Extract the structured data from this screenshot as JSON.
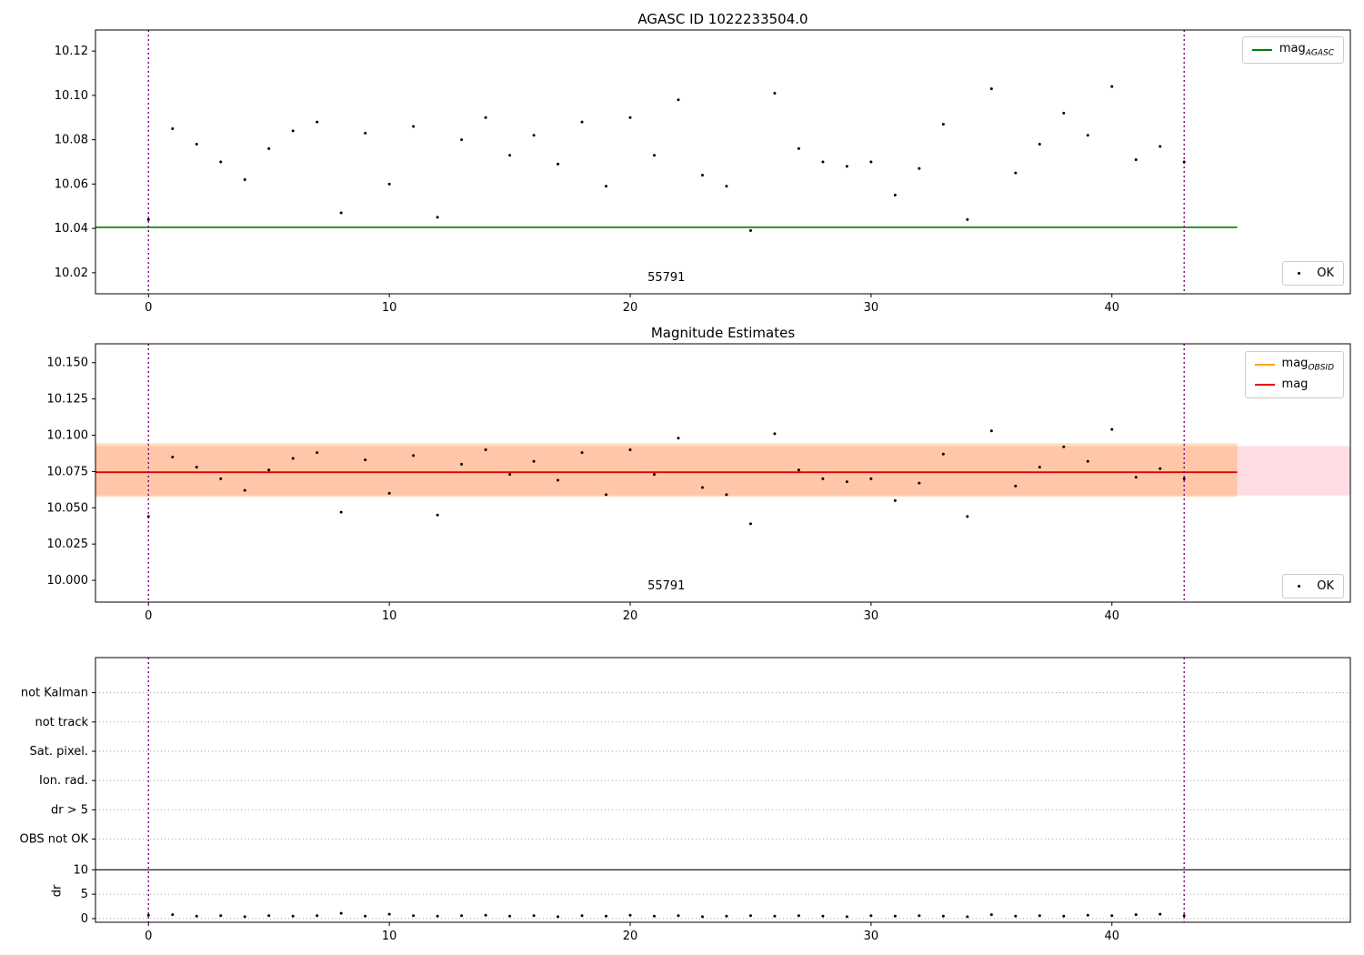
{
  "figure": {
    "obsid": "55791",
    "vline_color": "#800080",
    "marker_color": "#000000"
  },
  "points": {
    "x": [
      0,
      1,
      2,
      3,
      4,
      5,
      6,
      7,
      8,
      9,
      10,
      11,
      12,
      13,
      14,
      15,
      16,
      17,
      18,
      19,
      20,
      21,
      22,
      23,
      24,
      25,
      26,
      27,
      28,
      29,
      30,
      31,
      32,
      33,
      34,
      35,
      36,
      37,
      38,
      39,
      40,
      41,
      42,
      43
    ],
    "mag": [
      10.044,
      10.085,
      10.078,
      10.07,
      10.062,
      10.076,
      10.084,
      10.088,
      10.047,
      10.083,
      10.06,
      10.086,
      10.045,
      10.08,
      10.09,
      10.073,
      10.082,
      10.069,
      10.088,
      10.059,
      10.09,
      10.073,
      10.098,
      10.064,
      10.059,
      10.039,
      10.101,
      10.076,
      10.07,
      10.068,
      10.07,
      10.055,
      10.067,
      10.087,
      10.044,
      10.103,
      10.065,
      10.078,
      10.092,
      10.082,
      10.104,
      10.071,
      10.077,
      10.07
    ],
    "dr": [
      0.7,
      0.8,
      0.5,
      0.6,
      0.4,
      0.6,
      0.5,
      0.6,
      1.1,
      0.5,
      0.9,
      0.6,
      0.5,
      0.6,
      0.7,
      0.5,
      0.6,
      0.4,
      0.6,
      0.5,
      0.7,
      0.5,
      0.6,
      0.4,
      0.5,
      0.6,
      0.5,
      0.6,
      0.5,
      0.4,
      0.6,
      0.5,
      0.6,
      0.5,
      0.4,
      0.8,
      0.5,
      0.6,
      0.5,
      0.7,
      0.6,
      0.8,
      0.9,
      0.6
    ]
  },
  "chart_data": [
    {
      "name": "agasc-mag",
      "type": "scatter",
      "title": "AGASC ID 1022233504.0",
      "xlim": [
        -2.2,
        49.9
      ],
      "ylim": [
        10.0105,
        10.1295
      ],
      "x_key": "x",
      "y_key": "mag",
      "marker_color": "#000000",
      "xticks": [
        {
          "v": 0,
          "label": "0"
        },
        {
          "v": 10,
          "label": "10"
        },
        {
          "v": 20,
          "label": "20"
        },
        {
          "v": 30,
          "label": "30"
        },
        {
          "v": 40,
          "label": "40"
        }
      ],
      "yticks": [
        {
          "v": 10.02,
          "label": "10.02"
        },
        {
          "v": 10.04,
          "label": "10.04"
        },
        {
          "v": 10.06,
          "label": "10.06"
        },
        {
          "v": 10.08,
          "label": "10.08"
        },
        {
          "v": 10.1,
          "label": "10.10"
        },
        {
          "v": 10.12,
          "label": "10.12"
        }
      ],
      "hlines": [
        {
          "y": 10.0405,
          "x1": -2.2,
          "x2": 45.2,
          "color": "#007f00",
          "width": 1.6
        }
      ],
      "vlines": {
        "xs": [
          0,
          43
        ],
        "color": "#800080"
      },
      "annotation": {
        "x": 21.5
      },
      "legend": [
        {
          "label": "mag",
          "sub": "AGASC",
          "color": "#007f00"
        }
      ],
      "legend_ok": "OK"
    },
    {
      "name": "magnitude-estimates",
      "type": "scatter",
      "title": "Magnitude Estimates",
      "xlim": [
        -2.2,
        49.9
      ],
      "ylim": [
        9.985,
        10.163
      ],
      "x_key": "x",
      "y_key": "mag",
      "marker_color": "#000000",
      "xticks": [
        {
          "v": 0,
          "label": "0"
        },
        {
          "v": 10,
          "label": "10"
        },
        {
          "v": 20,
          "label": "20"
        },
        {
          "v": 30,
          "label": "30"
        },
        {
          "v": 40,
          "label": "40"
        }
      ],
      "yticks": [
        {
          "v": 10.0,
          "label": "10.000"
        },
        {
          "v": 10.025,
          "label": "10.025"
        },
        {
          "v": 10.05,
          "label": "10.050"
        },
        {
          "v": 10.075,
          "label": "10.075"
        },
        {
          "v": 10.1,
          "label": "10.100"
        },
        {
          "v": 10.125,
          "label": "10.125"
        },
        {
          "v": 10.15,
          "label": "10.150"
        }
      ],
      "bands": [
        {
          "y1": 10.0585,
          "y2": 10.0925,
          "x1": null,
          "x2": null,
          "color": "#ff6e8a",
          "opacity": 0.25
        },
        {
          "y1": 10.0575,
          "y2": 10.0945,
          "x1": -2.2,
          "x2": 45.2,
          "color": "#ff9d2e",
          "opacity": 0.32
        }
      ],
      "hlines": [
        {
          "y": 10.0745,
          "x1": -2.2,
          "x2": 45.2,
          "color": "#e60000",
          "width": 1.8
        }
      ],
      "vlines": {
        "xs": [
          0,
          43
        ],
        "color": "#800080"
      },
      "annotation": {
        "x": 21.5
      },
      "legend": [
        {
          "label": "mag",
          "sub": "OBSID",
          "color": "#ffa500"
        },
        {
          "label": "mag",
          "sub": "",
          "color": "#e60000"
        }
      ],
      "legend_ok": "OK"
    },
    {
      "name": "flags-dr",
      "type": "scatter",
      "title": "",
      "ylabel": "dr",
      "xlim": [
        -2.2,
        49.9
      ],
      "ylim": [
        -0.75,
        53.5
      ],
      "x_key": "x",
      "y_key": "dr",
      "marker_color": "#000000",
      "xticks": [
        {
          "v": 0,
          "label": "0"
        },
        {
          "v": 10,
          "label": "10"
        },
        {
          "v": 20,
          "label": "20"
        },
        {
          "v": 30,
          "label": "30"
        },
        {
          "v": 40,
          "label": "40"
        }
      ],
      "yticks": [
        {
          "v": 0,
          "label": "0"
        },
        {
          "v": 5,
          "label": "5"
        },
        {
          "v": 10,
          "label": "10"
        },
        {
          "v": 16.3,
          "label": "OBS not OK"
        },
        {
          "v": 22.3,
          "label": "dr > 5"
        },
        {
          "v": 28.3,
          "label": "Ion. rad."
        },
        {
          "v": 34.3,
          "label": "Sat. pixel."
        },
        {
          "v": 40.3,
          "label": "not track"
        },
        {
          "v": 46.3,
          "label": "not Kalman"
        }
      ],
      "grid_values": [
        0,
        5,
        16.3,
        22.3,
        28.3,
        34.3,
        40.3,
        46.3
      ],
      "hlines": [
        {
          "y": 10,
          "x1": null,
          "x2": null,
          "color": "#000000",
          "width": 1.2
        }
      ],
      "vlines": {
        "xs": [
          0,
          43
        ],
        "color": "#800080"
      }
    }
  ]
}
